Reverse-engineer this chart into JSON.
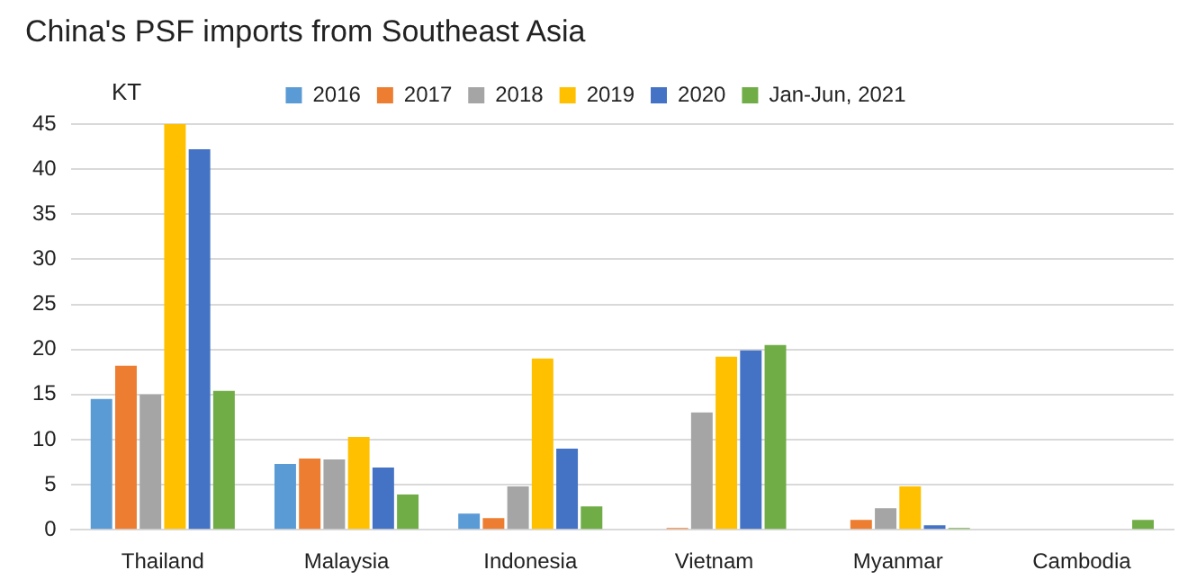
{
  "chart_data": {
    "type": "bar",
    "title": "China's PSF imports from Southeast Asia",
    "ylabel": "KT",
    "categories": [
      "Thailand",
      "Malaysia",
      "Indonesia",
      "Vietnam",
      "Myanmar",
      "Cambodia"
    ],
    "series": [
      {
        "name": "2016",
        "color": "#5b9bd5",
        "values": [
          14.5,
          7.3,
          1.8,
          0,
          0,
          0
        ]
      },
      {
        "name": "2017",
        "color": "#ed7d31",
        "values": [
          18.2,
          7.9,
          1.3,
          0.2,
          1.1,
          0
        ]
      },
      {
        "name": "2018",
        "color": "#a5a5a5",
        "values": [
          15.0,
          7.8,
          4.8,
          13.0,
          2.4,
          0
        ]
      },
      {
        "name": "2019",
        "color": "#ffc000",
        "values": [
          45.0,
          10.3,
          19.0,
          19.2,
          4.8,
          0
        ]
      },
      {
        "name": "2020",
        "color": "#4472c4",
        "values": [
          42.2,
          6.9,
          9.0,
          19.9,
          0.5,
          0
        ]
      },
      {
        "name": "Jan-Jun, 2021",
        "color": "#70ad47",
        "values": [
          15.4,
          3.9,
          2.6,
          20.5,
          0.2,
          1.1
        ]
      }
    ],
    "ylim": [
      0,
      45
    ],
    "yticks": [
      0,
      5,
      10,
      15,
      20,
      25,
      30,
      35,
      40,
      45
    ],
    "grid": "y",
    "legend": "top"
  }
}
